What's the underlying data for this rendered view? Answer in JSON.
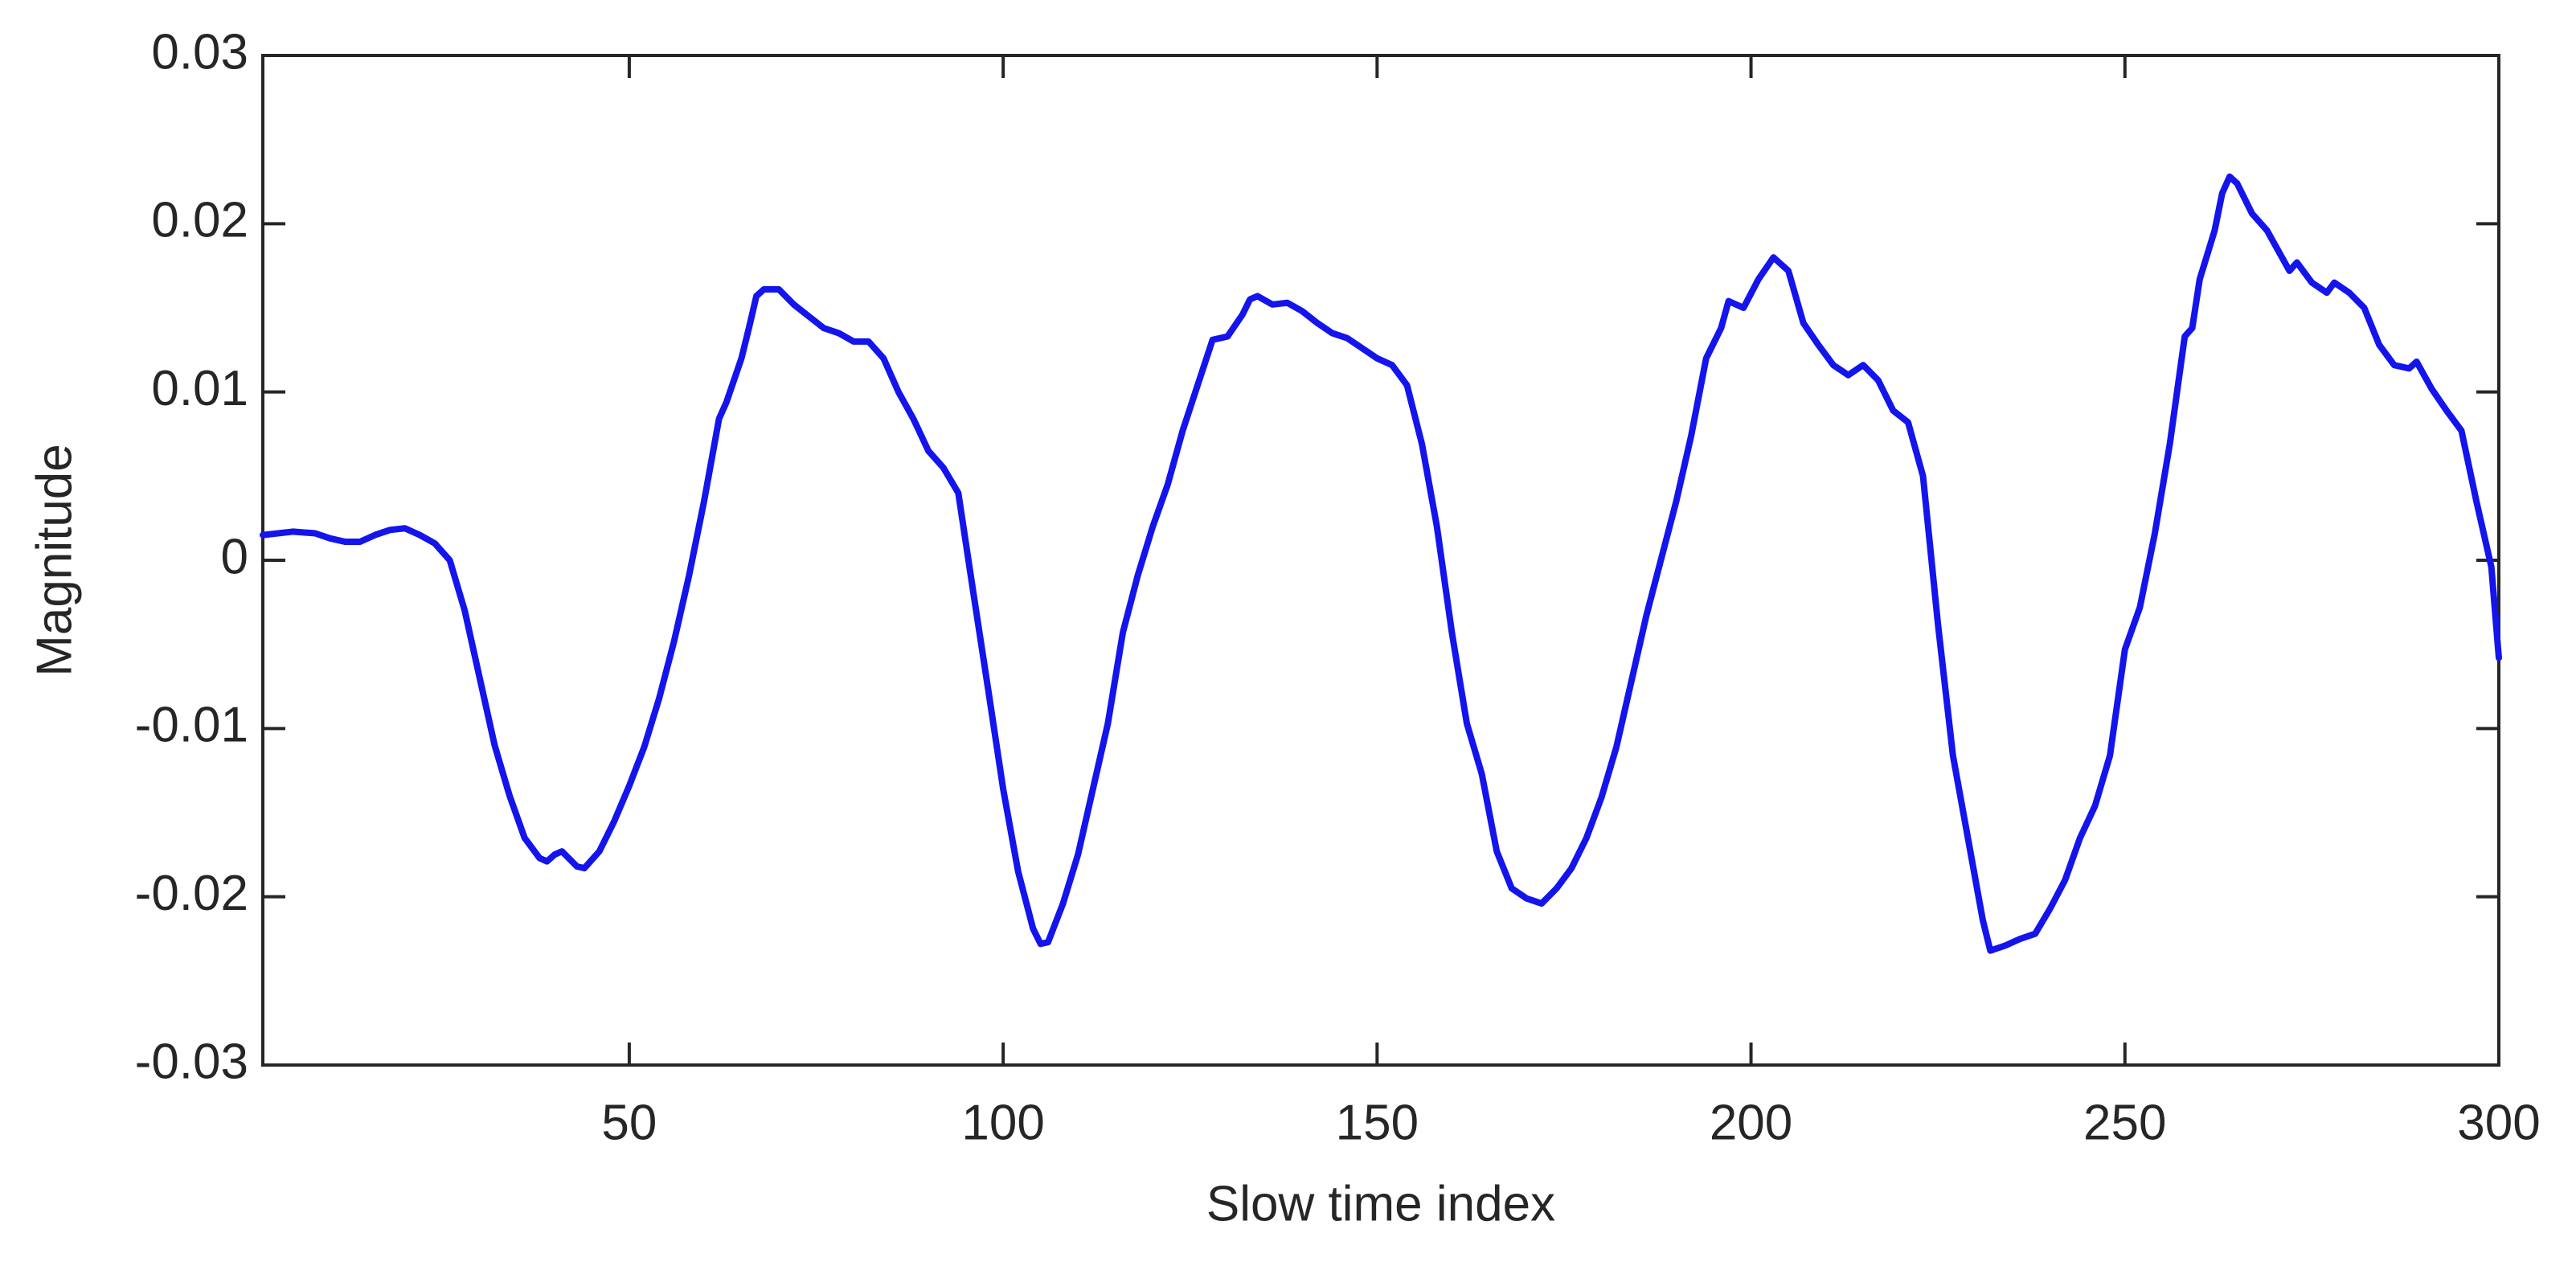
{
  "chart_data": {
    "type": "line",
    "xlabel": "Slow time index",
    "ylabel": "Magnitude",
    "xlim": [
      1,
      300
    ],
    "ylim": [
      -0.03,
      0.03
    ],
    "xticks": [
      50,
      100,
      150,
      200,
      250,
      300
    ],
    "yticks": [
      -0.03,
      -0.02,
      -0.01,
      0,
      0.01,
      0.02,
      0.03
    ],
    "x": [
      1,
      5,
      8,
      10,
      12,
      14,
      16,
      18,
      20,
      22,
      24,
      26,
      28,
      30,
      32,
      34,
      36,
      38,
      39,
      40,
      41,
      43,
      44,
      46,
      48,
      50,
      52,
      54,
      56,
      58,
      60,
      62,
      63,
      65,
      66,
      67,
      68,
      70,
      72,
      74,
      76,
      78,
      80,
      82,
      84,
      86,
      88,
      90,
      92,
      94,
      96,
      98,
      100,
      102,
      104,
      105,
      106,
      108,
      110,
      112,
      114,
      116,
      118,
      120,
      122,
      124,
      126,
      128,
      130,
      132,
      133,
      134,
      136,
      138,
      140,
      142,
      144,
      146,
      148,
      150,
      152,
      154,
      156,
      158,
      160,
      162,
      164,
      166,
      168,
      170,
      172,
      174,
      176,
      178,
      180,
      182,
      184,
      186,
      188,
      190,
      192,
      194,
      196,
      197,
      199,
      201,
      203,
      205,
      207,
      209,
      211,
      213,
      215,
      217,
      219,
      221,
      223,
      225,
      227,
      229,
      231,
      232,
      234,
      236,
      238,
      240,
      242,
      244,
      246,
      248,
      250,
      252,
      254,
      256,
      258,
      259,
      260,
      262,
      263,
      264,
      265,
      267,
      269,
      271,
      272,
      273,
      275,
      277,
      278,
      280,
      282,
      284,
      286,
      288,
      289,
      291,
      293,
      295,
      297,
      299,
      300
    ],
    "series": [
      {
        "name": "signal",
        "color": "#1414ec",
        "values": [
          0.0015,
          0.0017,
          0.0016,
          0.0013,
          0.0011,
          0.0011,
          0.0015,
          0.0018,
          0.0019,
          0.0015,
          0.001,
          0,
          -0.003,
          -0.007,
          -0.011,
          -0.014,
          -0.0165,
          -0.0177,
          -0.0179,
          -0.0175,
          -0.0173,
          -0.0182,
          -0.0183,
          -0.0173,
          -0.0155,
          -0.0134,
          -0.0111,
          -0.0082,
          -0.0048,
          -0.0009,
          0.0035,
          0.0084,
          0.0094,
          0.012,
          0.0138,
          0.0157,
          0.0161,
          0.0161,
          0.0152,
          0.0145,
          0.0138,
          0.0135,
          0.013,
          0.013,
          0.012,
          0.01,
          0.0084,
          0.0065,
          0.0055,
          0.004,
          -0.0019,
          -0.0077,
          -0.0136,
          -0.0185,
          -0.0219,
          -0.0228,
          -0.0227,
          -0.0204,
          -0.0175,
          -0.0136,
          -0.0097,
          -0.0043,
          -0.0009,
          0.002,
          0.0045,
          0.0077,
          0.0104,
          0.0131,
          0.0133,
          0.0146,
          0.0155,
          0.0157,
          0.0152,
          0.0153,
          0.0148,
          0.0141,
          0.0135,
          0.0132,
          0.0126,
          0.012,
          0.0116,
          0.0104,
          0.0069,
          0.002,
          -0.0043,
          -0.0097,
          -0.0127,
          -0.0173,
          -0.0195,
          -0.0201,
          -0.0204,
          -0.0195,
          -0.0183,
          -0.0165,
          -0.0141,
          -0.0111,
          -0.0072,
          -0.0033,
          0.0001,
          0.0035,
          0.0074,
          0.012,
          0.0138,
          0.0154,
          0.015,
          0.0167,
          0.018,
          0.0172,
          0.0141,
          0.0128,
          0.0116,
          0.011,
          0.0116,
          0.0107,
          0.0089,
          0.0082,
          0.005,
          -0.0038,
          -0.0116,
          -0.0165,
          -0.0214,
          -0.0232,
          -0.0229,
          -0.0225,
          -0.0222,
          -0.0207,
          -0.019,
          -0.0165,
          -0.0146,
          -0.0116,
          -0.0053,
          -0.0028,
          0.0016,
          0.0069,
          0.0133,
          0.0138,
          0.0167,
          0.0196,
          0.0218,
          0.0228,
          0.0224,
          0.0206,
          0.0196,
          0.018,
          0.0172,
          0.0177,
          0.0165,
          0.0159,
          0.0165,
          0.0159,
          0.015,
          0.0128,
          0.0116,
          0.0114,
          0.0118,
          0.0102,
          0.0089,
          0.0077,
          0.0035,
          -0.0004,
          -0.0058
        ]
      }
    ]
  }
}
